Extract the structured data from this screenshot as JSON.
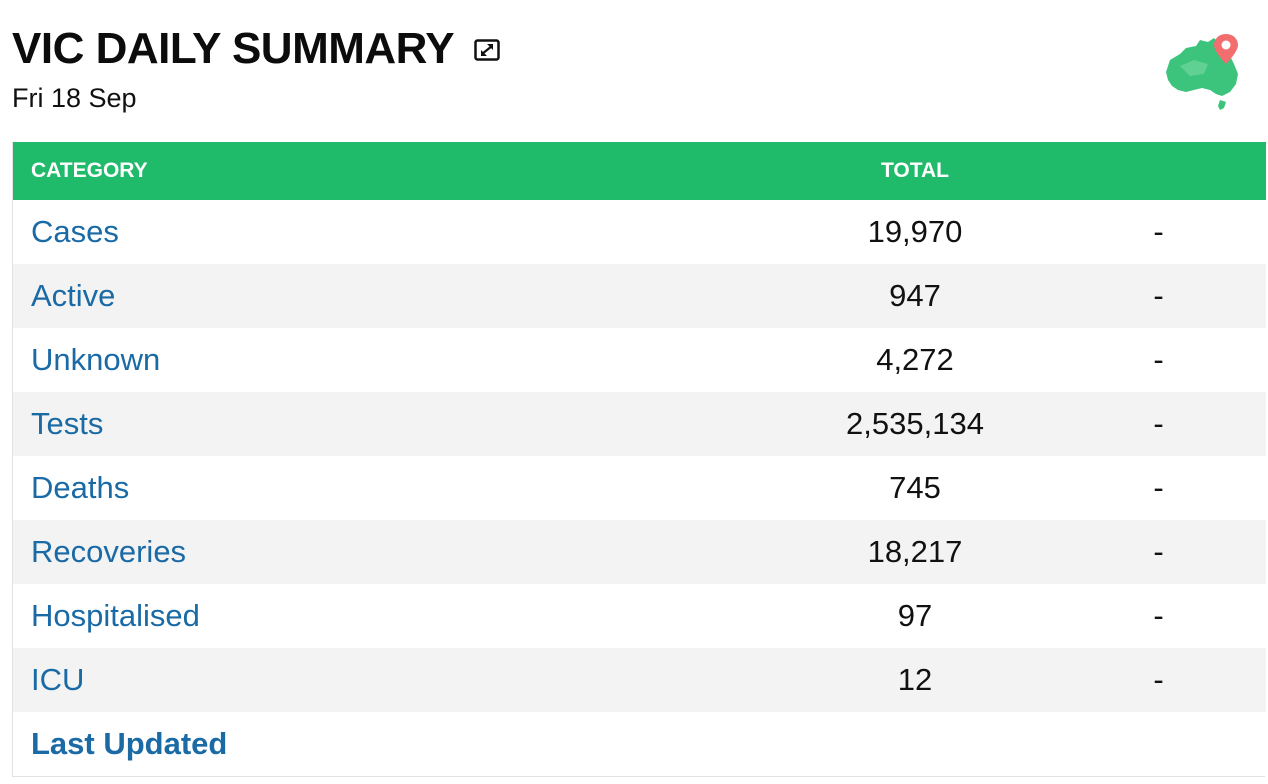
{
  "header": {
    "title": "VIC DAILY SUMMARY",
    "date": "Fri 18 Sep",
    "expand_icon": "expand-icon",
    "map_icon": "australia-map-pin-icon"
  },
  "table": {
    "headers": [
      "CATEGORY",
      "TOTAL",
      ""
    ],
    "rows": [
      {
        "category": "Cases",
        "total": "19,970",
        "change": "-"
      },
      {
        "category": "Active",
        "total": "947",
        "change": "-"
      },
      {
        "category": "Unknown",
        "total": "4,272",
        "change": "-"
      },
      {
        "category": "Tests",
        "total": "2,535,134",
        "change": "-"
      },
      {
        "category": "Deaths",
        "total": "745",
        "change": "-"
      },
      {
        "category": "Recoveries",
        "total": "18,217",
        "change": "-"
      },
      {
        "category": "Hospitalised",
        "total": "97",
        "change": "-"
      },
      {
        "category": "ICU",
        "total": "12",
        "change": "-"
      }
    ],
    "footer_label": "Last Updated"
  },
  "colors": {
    "header_bg": "#1fba6a",
    "link": "#1a6aa6",
    "stripe": "#f3f3f3"
  }
}
